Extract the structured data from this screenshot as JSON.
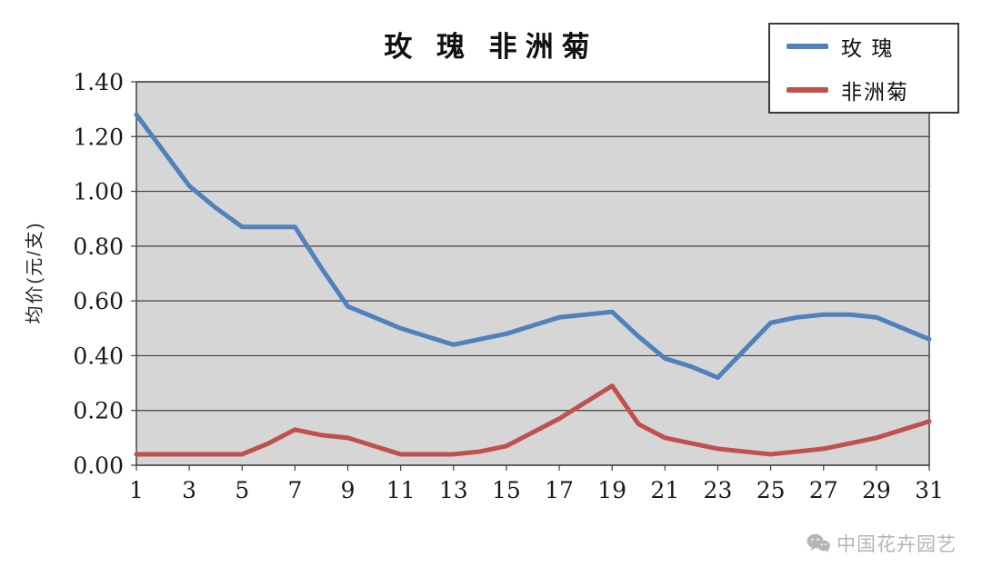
{
  "title": "玫 瑰  非洲菊",
  "y_axis_label": "均价(元/支)",
  "watermark": {
    "text": "中国花卉园艺",
    "icon": "wechat-icon"
  },
  "chart_data": {
    "type": "line",
    "title": "玫 瑰  非洲菊",
    "xlabel": "",
    "ylabel": "均价(元/支)",
    "ylim": [
      0,
      1.4
    ],
    "y_ticks": [
      0,
      0.2,
      0.4,
      0.6,
      0.8,
      1.0,
      1.2,
      1.4
    ],
    "grid": true,
    "plot_bg": "#d6d6d6",
    "grid_color": "#404040",
    "legend_position": "top-right",
    "x": [
      1,
      2,
      3,
      4,
      5,
      6,
      7,
      8,
      9,
      10,
      11,
      12,
      13,
      14,
      15,
      16,
      17,
      18,
      19,
      20,
      21,
      22,
      23,
      24,
      25,
      26,
      27,
      28,
      29,
      30,
      31
    ],
    "x_tick_labels": [
      "1",
      "3",
      "5",
      "7",
      "9",
      "11",
      "13",
      "15",
      "17",
      "19",
      "21",
      "23",
      "25",
      "27",
      "29",
      "31"
    ],
    "series": [
      {
        "name": "玫 瑰",
        "color": "#4f81bd",
        "values": [
          1.28,
          1.15,
          1.02,
          0.94,
          0.87,
          0.87,
          0.87,
          0.72,
          0.58,
          0.54,
          0.5,
          0.47,
          0.44,
          0.46,
          0.48,
          0.51,
          0.54,
          0.55,
          0.56,
          0.47,
          0.39,
          0.36,
          0.32,
          0.42,
          0.52,
          0.54,
          0.55,
          0.55,
          0.54,
          0.5,
          0.46
        ]
      },
      {
        "name": "非洲菊",
        "color": "#c0504d",
        "values": [
          0.04,
          0.04,
          0.04,
          0.04,
          0.04,
          0.08,
          0.13,
          0.11,
          0.1,
          0.07,
          0.04,
          0.04,
          0.04,
          0.05,
          0.07,
          0.12,
          0.17,
          0.23,
          0.29,
          0.15,
          0.1,
          0.08,
          0.06,
          0.05,
          0.04,
          0.05,
          0.06,
          0.08,
          0.1,
          0.13,
          0.16
        ]
      }
    ]
  }
}
